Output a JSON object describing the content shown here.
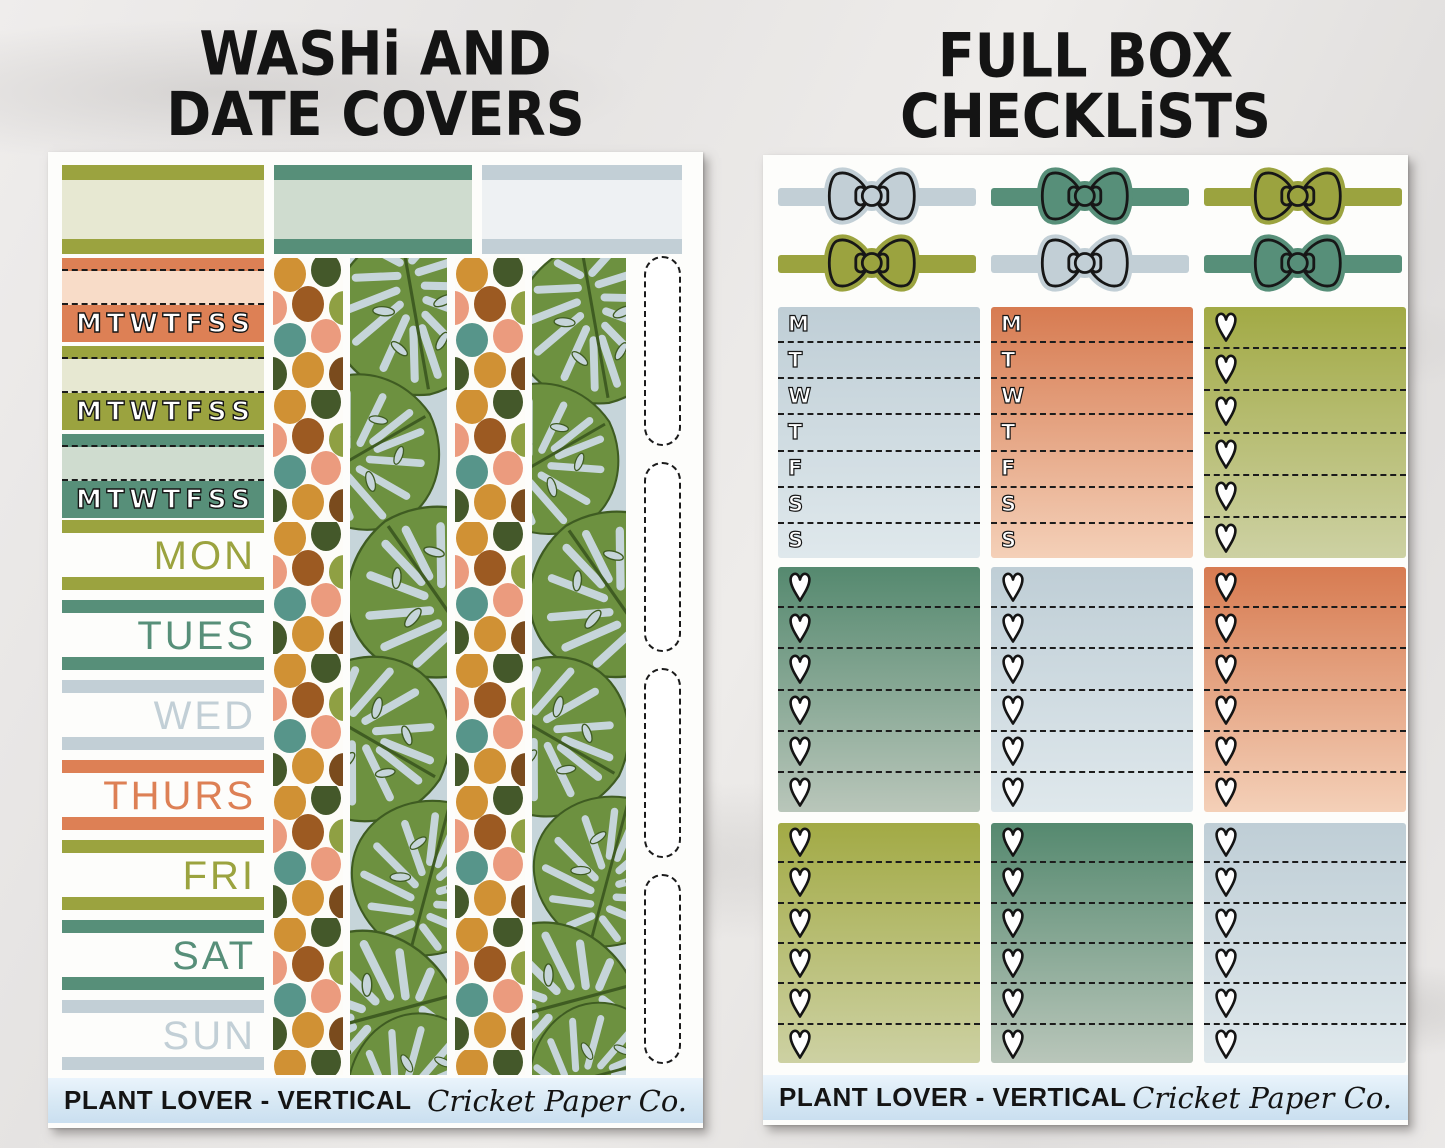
{
  "left_sheet": {
    "title_line1": "WASHi AND",
    "title_line2": "DATE COVERS",
    "washi_top": [
      {
        "color": "olive"
      },
      {
        "color": "teal"
      },
      {
        "color": "bluegray"
      }
    ],
    "date_cover_strips": [
      {
        "color": "salmon",
        "letters": [
          "M",
          "T",
          "W",
          "T",
          "F",
          "S",
          "S"
        ]
      },
      {
        "color": "olive",
        "letters": [
          "M",
          "T",
          "W",
          "T",
          "F",
          "S",
          "S"
        ]
      },
      {
        "color": "teal",
        "letters": [
          "M",
          "T",
          "W",
          "T",
          "F",
          "S",
          "S"
        ]
      }
    ],
    "day_covers": [
      {
        "label": "MON",
        "color": "olive"
      },
      {
        "label": "TUES",
        "color": "teal"
      },
      {
        "label": "WED",
        "color": "bluegray"
      },
      {
        "label": "THURS",
        "color": "salmon"
      },
      {
        "label": "FRI",
        "color": "olive"
      },
      {
        "label": "SAT",
        "color": "teal"
      },
      {
        "label": "SUN",
        "color": "bluegray"
      }
    ],
    "washi_patterns": [
      "multicolor-dots",
      "monstera-leaves",
      "multicolor-dots",
      "monstera-leaves"
    ],
    "footer": {
      "label": "PLANT LOVER - VERTICAL",
      "brand": "Cricket Paper Co."
    }
  },
  "right_sheet": {
    "title_line1": "FULL BOX",
    "title_line2": "CHECKLiSTS",
    "bows": [
      [
        "bluegray",
        "teal",
        "olive"
      ],
      [
        "olive",
        "bluegray",
        "teal"
      ]
    ],
    "checklist_letters": [
      "M",
      "T",
      "W",
      "T",
      "F",
      "S",
      "S"
    ],
    "heart_symbol": "♥",
    "heart_rows": 6,
    "boxes": [
      {
        "type": "days",
        "color": "bluegray"
      },
      {
        "type": "days",
        "color": "salmon"
      },
      {
        "type": "hearts",
        "color": "olive"
      },
      {
        "type": "hearts",
        "color": "teal"
      },
      {
        "type": "hearts",
        "color": "bluegray"
      },
      {
        "type": "hearts",
        "color": "salmon"
      },
      {
        "type": "hearts",
        "color": "olive"
      },
      {
        "type": "hearts",
        "color": "teal"
      },
      {
        "type": "hearts",
        "color": "bluegray"
      }
    ],
    "footer": {
      "label": "PLANT LOVER - VERTICAL",
      "brand": "Cricket Paper Co."
    }
  },
  "colors": {
    "olive": {
      "dark": "#9ba33f",
      "light": "#e7e8d2",
      "grad_top": "#a2aa45",
      "grad_bottom": "#cdd1a3"
    },
    "teal": {
      "dark": "#578f79",
      "light": "#cfdccf",
      "grad_top": "#55896f",
      "grad_bottom": "#b9c6ba"
    },
    "bluegray": {
      "dark": "#c2cfd6",
      "light": "#eef1f3",
      "grad_top": "#bfced6",
      "grad_bottom": "#dfe8ec"
    },
    "salmon": {
      "dark": "#dd8055",
      "light": "#f8dcc8",
      "grad_top": "#d77b51",
      "grad_bottom": "#f4d0b8"
    }
  },
  "pattern_colors": {
    "dots": [
      "#8fa043",
      "#d09134",
      "#eb9b7e",
      "#44582a",
      "#9c5a22",
      "#57958a",
      "#7a4b1d"
    ],
    "monstera_background": "#c6d5da",
    "leaf": "#6d9140",
    "leaf_dark": "#3f5c22"
  }
}
